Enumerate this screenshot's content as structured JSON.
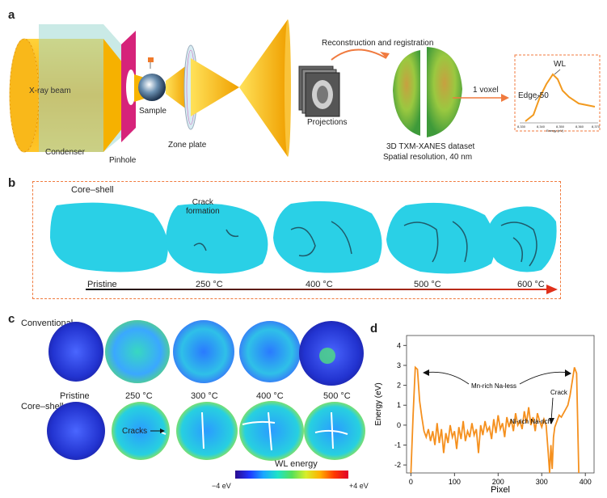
{
  "panel_a": {
    "label": "a",
    "xray_beam": "X-ray beam",
    "condenser": "Condenser",
    "pinhole": "Pinhole",
    "sample": "Sample",
    "zone_plate": "Zone plate",
    "reconstruction": "Reconstruction and registration",
    "projections": "Projections",
    "dataset_line1": "3D TXM-XANES dataset",
    "dataset_line2": "Spatial resolution, 40 nm",
    "voxel": "1 voxel",
    "inset_wl": "WL",
    "inset_edge": "Edge-50",
    "inset_ticks": [
      "8,330",
      "8,340",
      "8,350",
      "8,360",
      "8,370"
    ],
    "inset_xlabel": "Energy (eV)"
  },
  "panel_b": {
    "label": "b",
    "title": "Core–shell",
    "crack_line1": "Crack",
    "crack_line2": "formation",
    "temps": [
      "Pristine",
      "250 °C",
      "400 °C",
      "500 °C",
      "600 °C"
    ]
  },
  "panel_c": {
    "label": "c",
    "row1": "Conventional",
    "row2": "Core–shell",
    "temps": [
      "Pristine",
      "250 °C",
      "300 °C",
      "400 °C",
      "500 °C"
    ],
    "cracks": "Cracks",
    "colorbar_title": "WL energy",
    "colorbar_min": "−4 eV",
    "colorbar_max": "+4 eV"
  },
  "panel_d": {
    "label": "d",
    "ann_mn": "Mn-rich Na-less",
    "ann_ni": "Ni-rich Na-rich",
    "ann_crack": "Crack"
  },
  "chart_data": {
    "type": "line",
    "title": "",
    "xlabel": "Pixel",
    "ylabel": "Energy (eV)",
    "xlim": [
      -10,
      420
    ],
    "ylim": [
      -2.4,
      4.5
    ],
    "xticks": [
      0,
      100,
      200,
      300,
      400
    ],
    "yticks": [
      -2,
      -1,
      0,
      1,
      2,
      3,
      4
    ],
    "grid": false,
    "color": "#f5901e",
    "x": [
      0,
      5,
      10,
      15,
      20,
      25,
      30,
      35,
      40,
      45,
      50,
      55,
      60,
      65,
      70,
      75,
      80,
      85,
      90,
      95,
      100,
      105,
      110,
      115,
      120,
      125,
      130,
      135,
      140,
      145,
      150,
      155,
      160,
      165,
      170,
      175,
      180,
      185,
      190,
      195,
      200,
      205,
      210,
      215,
      220,
      225,
      230,
      235,
      240,
      245,
      250,
      255,
      260,
      265,
      270,
      275,
      280,
      285,
      290,
      295,
      300,
      305,
      310,
      315,
      318,
      321,
      324,
      327,
      330,
      335,
      340,
      345,
      350,
      355,
      360,
      365,
      370,
      375,
      380,
      385
    ],
    "y": [
      -2.4,
      0.5,
      2.9,
      2.8,
      1.2,
      0.4,
      -0.3,
      -0.6,
      -0.2,
      -0.8,
      -0.3,
      -1.0,
      0.1,
      -0.9,
      -0.2,
      -1.4,
      -0.4,
      -0.9,
      0.0,
      -0.6,
      -0.3,
      -1.2,
      -0.1,
      -0.7,
      0.2,
      -0.8,
      -0.3,
      -0.6,
      0.1,
      -0.5,
      -0.2,
      -1.4,
      0.0,
      -0.5,
      0.2,
      -0.3,
      -0.1,
      -0.7,
      0.3,
      -0.4,
      0.5,
      -0.2,
      0.1,
      -0.6,
      0.4,
      -0.1,
      0.3,
      -0.3,
      0.6,
      0.0,
      0.2,
      -0.2,
      0.7,
      0.1,
      0.9,
      0.0,
      0.4,
      -0.3,
      0.6,
      0.2,
      -0.1,
      0.3,
      0.0,
      -1.4,
      -2.4,
      -1.0,
      -2.2,
      -0.6,
      -0.1,
      0.2,
      0.5,
      0.4,
      0.6,
      0.8,
      1.0,
      1.5,
      2.2,
      2.9,
      2.6,
      -2.4
    ]
  }
}
